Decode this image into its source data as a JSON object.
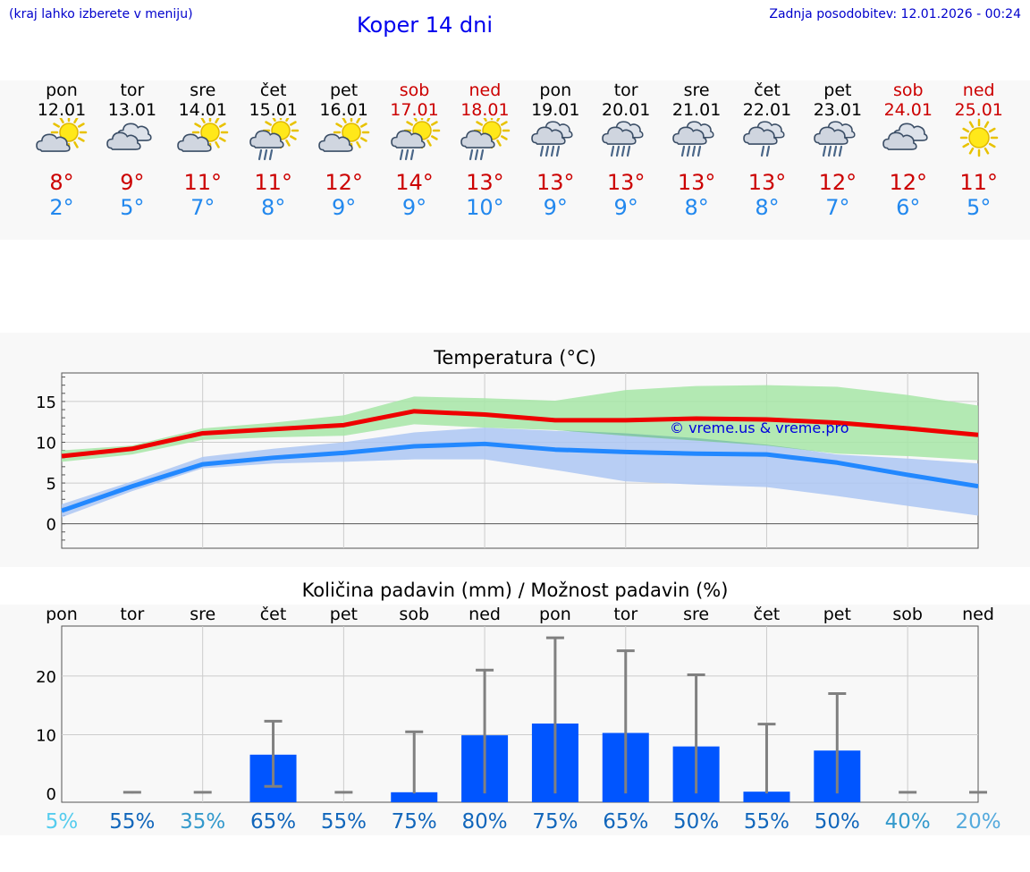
{
  "header": {
    "hint": "(kraj lahko izberete v meniju)",
    "title": "Koper 14 dni",
    "updated": "Zadnja posodobitev: 12.01.2026 - 00:24"
  },
  "days": [
    {
      "name": "pon",
      "date": "12.01",
      "weekend": false,
      "icon": "sun-cloud",
      "tmax": "8°",
      "tmin": "2°"
    },
    {
      "name": "tor",
      "date": "13.01",
      "weekend": false,
      "icon": "clouds",
      "tmax": "9°",
      "tmin": "5°"
    },
    {
      "name": "sre",
      "date": "14.01",
      "weekend": false,
      "icon": "sun-cloud",
      "tmax": "11°",
      "tmin": "7°"
    },
    {
      "name": "čet",
      "date": "15.01",
      "weekend": false,
      "icon": "sun-cloud-rain",
      "tmax": "11°",
      "tmin": "8°"
    },
    {
      "name": "pet",
      "date": "16.01",
      "weekend": false,
      "icon": "sun-cloud",
      "tmax": "12°",
      "tmin": "9°"
    },
    {
      "name": "sob",
      "date": "17.01",
      "weekend": true,
      "icon": "sun-cloud-rain",
      "tmax": "14°",
      "tmin": "9°"
    },
    {
      "name": "ned",
      "date": "18.01",
      "weekend": true,
      "icon": "sun-cloud-rain",
      "tmax": "13°",
      "tmin": "10°"
    },
    {
      "name": "pon",
      "date": "19.01",
      "weekend": false,
      "icon": "cloud-rain",
      "tmax": "13°",
      "tmin": "9°"
    },
    {
      "name": "tor",
      "date": "20.01",
      "weekend": false,
      "icon": "cloud-rain",
      "tmax": "13°",
      "tmin": "9°"
    },
    {
      "name": "sre",
      "date": "21.01",
      "weekend": false,
      "icon": "cloud-rain",
      "tmax": "13°",
      "tmin": "8°"
    },
    {
      "name": "čet",
      "date": "22.01",
      "weekend": false,
      "icon": "cloud-rain-light",
      "tmax": "13°",
      "tmin": "8°"
    },
    {
      "name": "pet",
      "date": "23.01",
      "weekend": false,
      "icon": "cloud-rain",
      "tmax": "12°",
      "tmin": "7°"
    },
    {
      "name": "sob",
      "date": "24.01",
      "weekend": true,
      "icon": "clouds",
      "tmax": "12°",
      "tmin": "6°"
    },
    {
      "name": "ned",
      "date": "25.01",
      "weekend": true,
      "icon": "sun",
      "tmax": "11°",
      "tmin": "5°"
    }
  ],
  "colors": {
    "max_line": "#ee0000",
    "min_line": "#2288ff",
    "max_band": "#a8e6a8",
    "min_band": "#aec7f2",
    "bar": "#0055ff",
    "err": "#808080"
  },
  "chart_data": [
    {
      "type": "line",
      "title": "Temperatura (°C)",
      "x": [
        "pon",
        "tor",
        "sre",
        "čet",
        "pet",
        "sob",
        "ned",
        "pon",
        "tor",
        "sre",
        "čet",
        "pet",
        "sob",
        "ned"
      ],
      "yticks": [
        0,
        5,
        10,
        15
      ],
      "ylim": [
        -3,
        18.5
      ],
      "watermark": "© vreme.us & vreme.pro",
      "series": [
        {
          "name": "max",
          "values": [
            8.3,
            9.2,
            11.1,
            11.6,
            12.1,
            13.8,
            13.4,
            12.7,
            12.7,
            12.9,
            12.8,
            12.4,
            11.7,
            10.9
          ]
        },
        {
          "name": "max_band_low",
          "values": [
            7.6,
            8.5,
            10.3,
            10.6,
            10.8,
            12.2,
            11.8,
            11.5,
            10.8,
            10.2,
            9.6,
            8.6,
            8.3,
            7.8
          ]
        },
        {
          "name": "max_band_high",
          "values": [
            9.0,
            9.6,
            11.7,
            12.4,
            13.3,
            15.6,
            15.4,
            15.1,
            16.4,
            16.9,
            17.0,
            16.8,
            15.8,
            14.5
          ]
        },
        {
          "name": "min",
          "values": [
            1.6,
            4.6,
            7.3,
            8.1,
            8.7,
            9.5,
            9.8,
            9.1,
            8.8,
            8.6,
            8.5,
            7.5,
            6.0,
            4.6
          ]
        },
        {
          "name": "min_band_low",
          "values": [
            0.8,
            4.0,
            6.8,
            7.4,
            7.6,
            7.9,
            7.9,
            6.6,
            5.2,
            4.8,
            4.5,
            3.4,
            2.2,
            1.0
          ]
        },
        {
          "name": "min_band_high",
          "values": [
            2.4,
            5.2,
            8.2,
            9.2,
            10.0,
            11.2,
            11.8,
            11.4,
            11.1,
            10.5,
            9.7,
            8.5,
            8.0,
            7.4
          ]
        }
      ]
    },
    {
      "type": "bar",
      "title": "Količina padavin (mm) / Možnost padavin (%)",
      "categories": [
        "pon",
        "tor",
        "sre",
        "čet",
        "pet",
        "sob",
        "ned",
        "pon",
        "tor",
        "sre",
        "čet",
        "pet",
        "sob",
        "ned"
      ],
      "values": [
        0,
        0,
        0,
        6.6,
        0,
        0.2,
        9.9,
        11.9,
        10.3,
        8.0,
        0.3,
        7.3,
        0,
        0
      ],
      "err_low": [
        0,
        0,
        0,
        1.2,
        0,
        0,
        0,
        0,
        0,
        0,
        0,
        0,
        0,
        0
      ],
      "err_high": [
        0,
        0.2,
        0.2,
        12.3,
        0.2,
        10.5,
        21.0,
        26.5,
        24.3,
        20.2,
        11.8,
        17.0,
        0.2,
        0.2
      ],
      "yticks": [
        0,
        10,
        20
      ],
      "ylim": [
        -1.5,
        28.5
      ],
      "probability": [
        "5%",
        "55%",
        "35%",
        "65%",
        "55%",
        "75%",
        "80%",
        "75%",
        "65%",
        "50%",
        "55%",
        "50%",
        "40%",
        "20%"
      ],
      "prob_colors": [
        "#55ccee",
        "#1166bb",
        "#3399cc",
        "#1166bb",
        "#1166bb",
        "#1166bb",
        "#1166bb",
        "#1166bb",
        "#1166bb",
        "#1166bb",
        "#1166bb",
        "#1166bb",
        "#3399cc",
        "#55aadd"
      ]
    }
  ]
}
